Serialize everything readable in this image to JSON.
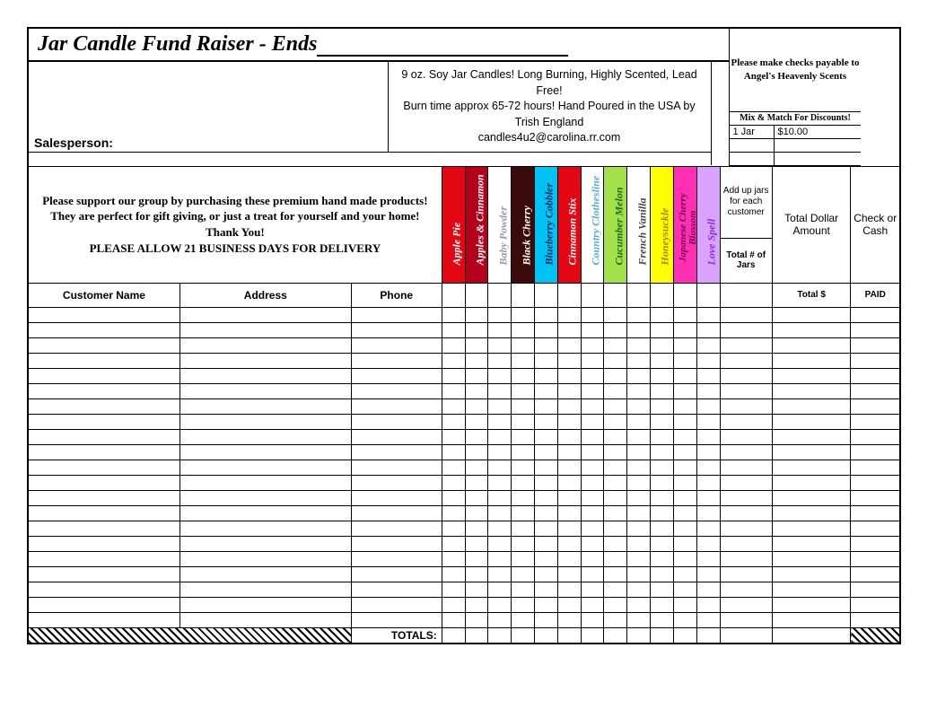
{
  "title": "Jar Candle Fund Raiser  - Ends",
  "payable_line1": "Please make checks payable to",
  "payable_line2": "Angel's Heavenly Scents",
  "description": "9 oz. Soy Jar Candles!  Long Burning, Highly Scented, Lead Free!\nBurn time approx 65-72 hours!  Hand Poured in the USA by   Trish England\ncandles4u2@carolina.rr.com",
  "salesperson_label": "Salesperson:",
  "mixmatch": "Mix & Match For Discounts!",
  "price_qty": "1 Jar",
  "price_val": "$10.00",
  "support": "Please support our group by purchasing these premium hand made products!  They are perfect for gift giving, or just a treat for yourself and your home!  Thank You!",
  "delivery": "PLEASE ALLOW 21 BUSINESS DAYS FOR DELIVERY",
  "hdr_customer": "Customer Name",
  "hdr_address": "Address",
  "hdr_phone": "Phone",
  "scents": [
    {
      "name": "Apple Pie",
      "bg": "#e30613",
      "fg": "#ffffff"
    },
    {
      "name": "Apples & Cinnamon",
      "bg": "#b3001b",
      "fg": "#ffffff"
    },
    {
      "name": "Baby Powder",
      "bg": "#ffffff",
      "fg": "#9a9a9a"
    },
    {
      "name": "Black Cherry",
      "bg": "#3b0a0a",
      "fg": "#ffffff"
    },
    {
      "name": "Blueberry Cobbler",
      "bg": "#00c2f3",
      "fg": "#0b2a6b"
    },
    {
      "name": "Cinnamon Stix",
      "bg": "#e30613",
      "fg": "#ffffff"
    },
    {
      "name": "Country Clothesline",
      "bg": "#ffffff",
      "fg": "#5aa9d6"
    },
    {
      "name": "Cucumber Melon",
      "bg": "#a3e04a",
      "fg": "#1f6b1f"
    },
    {
      "name": "French Vanilla",
      "bg": "#ffffff",
      "fg": "#444444"
    },
    {
      "name": "Honeysuckle",
      "bg": "#ffff00",
      "fg": "#b08000"
    },
    {
      "name": "Japanese Cherry Blossom",
      "bg": "#ff2fb3",
      "fg": "#7a005a",
      "twoLine": true
    },
    {
      "name": "Love Spell",
      "bg": "#d9a3ff",
      "fg": "#8a2be2"
    }
  ],
  "addjars": "Add up jars for each customer",
  "totaldollar": "Total Dollar Amount",
  "checkcash": "Check or Cash",
  "totalnum": "Total # of Jars",
  "totalcash_hdr": "Total $",
  "paid_hdr": "PAID",
  "totals_label": "TOTALS:",
  "data_rows": 21,
  "column_widths": {
    "customer": 150,
    "address": 170,
    "phone": 90,
    "scent": 23,
    "addjars": 52,
    "totaldollar": 78,
    "paid": 48
  }
}
